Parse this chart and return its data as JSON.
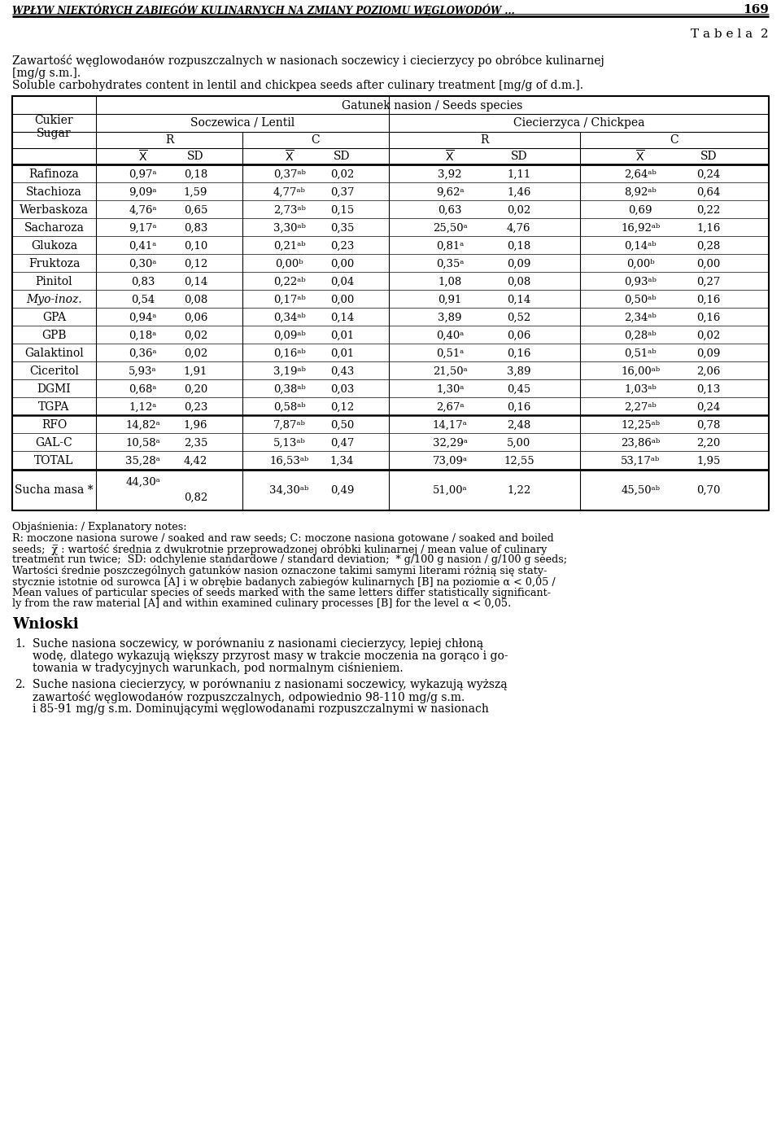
{
  "title_line": "WPŁYW NIEKTÓRYCH ZABIEGÓW KULINARNYCH NA ZMIANY POZIOMU WĘGLOWODÓW ...",
  "page_number": "169",
  "tabela": "T a b e l a  2",
  "caption_pl1": "Zawartość węglowodанów rozpuszczalnych w nasionach soczewicy i ciecierzycy po obróbce kulinarnej",
  "caption_pl2": "[mg/g s.m.].",
  "caption_en": "Soluble carbohydrates content in lentil and chickpea seeds after culinary treatment [mg/g of d.m.].",
  "col_header_1": "Gatunek nasion / Seeds species",
  "col_header_2a": "Soczewica / Lentil",
  "col_header_2b": "Ciecierzyca / Chickpea",
  "col_header_3a": "R",
  "col_header_3b": "C",
  "col_header_3c": "R",
  "col_header_3d": "C",
  "row_header_label1": "Cukier",
  "row_header_label2": "Sugar",
  "rows": [
    {
      "name": "Rafinoza",
      "v1": "0,97ᵃ",
      "sd1": "0,18",
      "v2": "0,37ᵃᵇ",
      "sd2": "0,02",
      "v3": "3,92",
      "sd3": "1,11",
      "v4": "2,64ᵃᵇ",
      "sd4": "0,24",
      "italic": false
    },
    {
      "name": "Stachioza",
      "v1": "9,09ᵃ",
      "sd1": "1,59",
      "v2": "4,77ᵃᵇ",
      "sd2": "0,37",
      "v3": "9,62ᵃ",
      "sd3": "1,46",
      "v4": "8,92ᵃᵇ",
      "sd4": "0,64",
      "italic": false
    },
    {
      "name": "Werbaskoza",
      "v1": "4,76ᵃ",
      "sd1": "0,65",
      "v2": "2,73ᵃᵇ",
      "sd2": "0,15",
      "v3": "0,63",
      "sd3": "0,02",
      "v4": "0,69",
      "sd4": "0,22",
      "italic": false
    },
    {
      "name": "Sacharoza",
      "v1": "9,17ᵃ",
      "sd1": "0,83",
      "v2": "3,30ᵃᵇ",
      "sd2": "0,35",
      "v3": "25,50ᵃ",
      "sd3": "4,76",
      "v4": "16,92ᵃᵇ",
      "sd4": "1,16",
      "italic": false
    },
    {
      "name": "Glukoza",
      "v1": "0,41ᵃ",
      "sd1": "0,10",
      "v2": "0,21ᵃᵇ",
      "sd2": "0,23",
      "v3": "0,81ᵃ",
      "sd3": "0,18",
      "v4": "0,14ᵃᵇ",
      "sd4": "0,28",
      "italic": false
    },
    {
      "name": "Fruktoza",
      "v1": "0,30ᵃ",
      "sd1": "0,12",
      "v2": "0,00ᵇ",
      "sd2": "0,00",
      "v3": "0,35ᵃ",
      "sd3": "0,09",
      "v4": "0,00ᵇ",
      "sd4": "0,00",
      "italic": false
    },
    {
      "name": "Pinitol",
      "v1": "0,83",
      "sd1": "0,14",
      "v2": "0,22ᵃᵇ",
      "sd2": "0,04",
      "v3": "1,08",
      "sd3": "0,08",
      "v4": "0,93ᵃᵇ",
      "sd4": "0,27",
      "italic": false
    },
    {
      "name": "Myo-inoz.",
      "v1": "0,54",
      "sd1": "0,08",
      "v2": "0,17ᵃᵇ",
      "sd2": "0,00",
      "v3": "0,91",
      "sd3": "0,14",
      "v4": "0,50ᵃᵇ",
      "sd4": "0,16",
      "italic": true
    },
    {
      "name": "GPA",
      "v1": "0,94ᵃ",
      "sd1": "0,06",
      "v2": "0,34ᵃᵇ",
      "sd2": "0,14",
      "v3": "3,89",
      "sd3": "0,52",
      "v4": "2,34ᵃᵇ",
      "sd4": "0,16",
      "italic": false
    },
    {
      "name": "GPB",
      "v1": "0,18ᵃ",
      "sd1": "0,02",
      "v2": "0,09ᵃᵇ",
      "sd2": "0,01",
      "v3": "0,40ᵃ",
      "sd3": "0,06",
      "v4": "0,28ᵃᵇ",
      "sd4": "0,02",
      "italic": false
    },
    {
      "name": "Galaktinol",
      "v1": "0,36ᵃ",
      "sd1": "0,02",
      "v2": "0,16ᵃᵇ",
      "sd2": "0,01",
      "v3": "0,51ᵃ",
      "sd3": "0,16",
      "v4": "0,51ᵃᵇ",
      "sd4": "0,09",
      "italic": false
    },
    {
      "name": "Ciceritol",
      "v1": "5,93ᵃ",
      "sd1": "1,91",
      "v2": "3,19ᵃᵇ",
      "sd2": "0,43",
      "v3": "21,50ᵃ",
      "sd3": "3,89",
      "v4": "16,00ᵃᵇ",
      "sd4": "2,06",
      "italic": false
    },
    {
      "name": "DGMI",
      "v1": "0,68ᵃ",
      "sd1": "0,20",
      "v2": "0,38ᵃᵇ",
      "sd2": "0,03",
      "v3": "1,30ᵃ",
      "sd3": "0,45",
      "v4": "1,03ᵃᵇ",
      "sd4": "0,13",
      "italic": false
    },
    {
      "name": "TGPA",
      "v1": "1,12ᵃ",
      "sd1": "0,23",
      "v2": "0,58ᵃᵇ",
      "sd2": "0,12",
      "v3": "2,67ᵃ",
      "sd3": "0,16",
      "v4": "2,27ᵃᵇ",
      "sd4": "0,24",
      "italic": false
    },
    {
      "name": "RFO",
      "v1": "14,82ᵃ",
      "sd1": "1,96",
      "v2": "7,87ᵃᵇ",
      "sd2": "0,50",
      "v3": "14,17ᵃ",
      "sd3": "2,48",
      "v4": "12,25ᵃᵇ",
      "sd4": "0,78",
      "italic": false,
      "thick_top": true
    },
    {
      "name": "GAL-C",
      "v1": "10,58ᵃ",
      "sd1": "2,35",
      "v2": "5,13ᵃᵇ",
      "sd2": "0,47",
      "v3": "32,29ᵃ",
      "sd3": "5,00",
      "v4": "23,86ᵃᵇ",
      "sd4": "2,20",
      "italic": false
    },
    {
      "name": "TOTAL",
      "v1": "35,28ᵃ",
      "sd1": "4,42",
      "v2": "16,53ᵃᵇ",
      "sd2": "1,34",
      "v3": "73,09ᵃ",
      "sd3": "12,55",
      "v4": "53,17ᵃᵇ",
      "sd4": "1,95",
      "italic": false
    }
  ],
  "sucha_name": "Sucha masa",
  "sucha_star": "*",
  "sucha_v1": "44,30ᵃ",
  "sucha_sd1": "0,82",
  "sucha_v2": "34,30ᵃᵇ",
  "sucha_sd2": "0,49",
  "sucha_v3": "51,00ᵃ",
  "sucha_sd3": "1,22",
  "sucha_v4": "45,50ᵃᵇ",
  "sucha_sd4": "0,70",
  "notes_lines": [
    "Objaśnienia: / Explanatory notes:",
    "R: moczone nasiona surowe / soaked and raw seeds; C: moczone nasiona gotowane / soaked and boiled seeds;  χ̅ : wartość",
    "średnia z dwukrotnie przeprowadzonej obróbki kulinarnej / mean value of culinary treatment run twice;  SD: odchylenie",
    "standardowe / standard deviation; * g/100 g nasion / g/100 g seeds;",
    "Wartości średnie poszczególnych gatunków nasion oznaczone takimi samymi literami różnią się statystycznie istotnie od surowca",
    "[A] i w obrębie badanych zabiegów kulinarnych [B] na poziomie α < 0,05 / Mean values of particular species of seeds marked",
    "with the same letters differ statistically significantly from the raw material [A] and within examined culinary processes [B]",
    "for the level α < 0,05."
  ],
  "wnioski_title": "Wnioski",
  "wnioski_items": [
    [
      "Suche nasiona soczewicy, w porównaniu z nasionami ciecierzycy, lepiej chłoną wodę, dlatego wykazują większy",
      "przyrost masy w trakcie moczenia na gorąco i go-towania w tradycyjnych warunkach, pod normalnym ciśnieniem."
    ],
    [
      "Suche nasiona ciecierzycy, w porównaniu z nasionami soczewicy, wykazują wyższą zawartość węglowodанów",
      "rozpuszczalnych, odpowiednio 98-110 mg/g s.m. i 85-91 mg/g s.m. Dominującymi węglowodanami rozpuszczalnymi w nasionach"
    ]
  ]
}
